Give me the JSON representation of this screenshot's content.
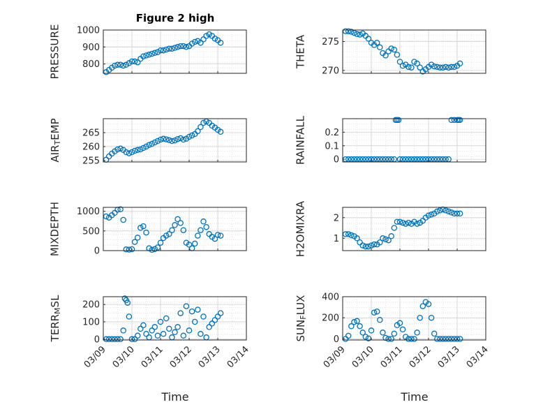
{
  "figure": {
    "title": "Figure 2 high",
    "xlabel": "Time"
  },
  "colors": {
    "marker": "#0072bd",
    "grid": "#dcdcdc",
    "axis": "#262626"
  },
  "chart_data": [
    {
      "type": "scatter",
      "ylabel": "PRESSURE",
      "ylim": [
        745,
        1000
      ],
      "yticks": [
        "800",
        "900",
        "1000"
      ],
      "ytick_values": [
        800,
        900,
        1000
      ],
      "xlim": [
        0,
        5
      ],
      "xticks": [],
      "grid": true,
      "x": [
        0.1,
        0.2,
        0.3,
        0.4,
        0.5,
        0.6,
        0.7,
        0.8,
        0.9,
        1.0,
        1.1,
        1.2,
        1.3,
        1.4,
        1.5,
        1.6,
        1.7,
        1.8,
        1.9,
        2.0,
        2.1,
        2.2,
        2.3,
        2.4,
        2.5,
        2.6,
        2.7,
        2.8,
        2.9,
        3.0,
        3.1,
        3.2,
        3.3,
        3.4,
        3.5,
        3.6,
        3.7,
        3.8,
        3.9,
        4.0,
        4.1
      ],
      "y": [
        752,
        765,
        778,
        790,
        795,
        795,
        790,
        795,
        805,
        815,
        815,
        810,
        830,
        845,
        850,
        855,
        860,
        865,
        870,
        880,
        880,
        885,
        890,
        890,
        895,
        900,
        905,
        905,
        900,
        905,
        920,
        930,
        935,
        925,
        945,
        965,
        975,
        965,
        950,
        940,
        925
      ]
    },
    {
      "type": "scatter",
      "ylabel": "THETA",
      "ylim": [
        269.5,
        277
      ],
      "yticks": [
        "270",
        "275"
      ],
      "ytick_values": [
        270,
        275
      ],
      "xlim": [
        0,
        5
      ],
      "xticks": [],
      "grid": true,
      "x": [
        0.1,
        0.2,
        0.3,
        0.4,
        0.5,
        0.6,
        0.7,
        0.8,
        0.9,
        1.0,
        1.1,
        1.2,
        1.3,
        1.4,
        1.5,
        1.6,
        1.7,
        1.8,
        1.9,
        2.0,
        2.1,
        2.2,
        2.3,
        2.4,
        2.5,
        2.6,
        2.7,
        2.8,
        2.9,
        3.0,
        3.1,
        3.2,
        3.3,
        3.4,
        3.5,
        3.6,
        3.7,
        3.8,
        3.9,
        4.0,
        4.1
      ],
      "y": [
        276.8,
        276.8,
        276.7,
        276.5,
        276.3,
        276.2,
        276.4,
        276.0,
        275.5,
        274.8,
        274.4,
        274.8,
        274.0,
        273.0,
        272.6,
        273.3,
        273.8,
        273.6,
        272.7,
        271.5,
        270.8,
        271.0,
        270.6,
        270.5,
        271.5,
        271.2,
        270.5,
        269.8,
        270.2,
        270.6,
        271.0,
        270.7,
        270.6,
        270.5,
        270.5,
        270.6,
        270.5,
        270.6,
        270.6,
        270.8,
        271.2
      ]
    },
    {
      "type": "scatter",
      "ylabel": "AIR_T EMP",
      "ylim": [
        254.5,
        270
      ],
      "yticks": [
        "255",
        "260",
        "265"
      ],
      "ytick_values": [
        255,
        260,
        265
      ],
      "xlim": [
        0,
        5
      ],
      "xticks": [],
      "grid": true,
      "x": [
        0.1,
        0.2,
        0.3,
        0.4,
        0.5,
        0.6,
        0.7,
        0.8,
        0.9,
        1.0,
        1.1,
        1.2,
        1.3,
        1.4,
        1.5,
        1.6,
        1.7,
        1.8,
        1.9,
        2.0,
        2.1,
        2.2,
        2.3,
        2.4,
        2.5,
        2.6,
        2.7,
        2.8,
        2.9,
        3.0,
        3.1,
        3.2,
        3.3,
        3.4,
        3.5,
        3.6,
        3.7,
        3.8,
        3.9,
        4.0,
        4.1
      ],
      "y": [
        255.3,
        256.5,
        257.5,
        258.3,
        259.0,
        259.3,
        258.8,
        258.0,
        257.6,
        258.0,
        258.5,
        258.8,
        259.0,
        259.5,
        260.0,
        260.6,
        261.0,
        261.5,
        262.0,
        262.5,
        262.8,
        262.6,
        262.3,
        262.0,
        262.2,
        262.7,
        263.0,
        262.5,
        262.8,
        263.5,
        264.0,
        264.5,
        265.5,
        267.0,
        268.5,
        269.0,
        268.5,
        267.5,
        266.8,
        266.0,
        265.3
      ]
    },
    {
      "type": "scatter",
      "ylabel": "RAINFALL",
      "ylim": [
        -0.02,
        0.3
      ],
      "yticks": [
        "0",
        "0.1",
        "0.2"
      ],
      "ytick_values": [
        0,
        0.1,
        0.2
      ],
      "xlim": [
        0,
        5
      ],
      "xticks": [],
      "grid": true,
      "x": [
        0.1,
        0.2,
        0.3,
        0.4,
        0.5,
        0.6,
        0.7,
        0.8,
        0.9,
        1.0,
        1.1,
        1.2,
        1.3,
        1.4,
        1.5,
        1.6,
        1.7,
        1.8,
        1.85,
        1.9,
        1.95,
        2.0,
        2.1,
        2.2,
        2.3,
        2.4,
        2.5,
        2.6,
        2.7,
        2.8,
        2.9,
        3.0,
        3.1,
        3.2,
        3.3,
        3.4,
        3.5,
        3.6,
        3.7,
        3.8,
        3.9,
        4.0,
        4.05,
        4.1
      ],
      "y": [
        0,
        0,
        0,
        0,
        0,
        0,
        0,
        0,
        0,
        0,
        0,
        0,
        0,
        0,
        0,
        0,
        0,
        0,
        0.29,
        0.29,
        0.29,
        0,
        0,
        0,
        0,
        0,
        0,
        0,
        0,
        0,
        0,
        0,
        0,
        0,
        0,
        0,
        0,
        0,
        0,
        0.29,
        0.29,
        0.29,
        0.29,
        0.29
      ]
    },
    {
      "type": "scatter",
      "ylabel": "MIXDEPTH",
      "ylim": [
        0,
        1100
      ],
      "yticks": [
        "0",
        "500",
        "1000"
      ],
      "ytick_values": [
        0,
        500,
        1000
      ],
      "xlim": [
        0,
        5
      ],
      "xticks": [],
      "grid": true,
      "x": [
        0.1,
        0.2,
        0.3,
        0.4,
        0.5,
        0.6,
        0.7,
        0.8,
        0.9,
        1.0,
        1.1,
        1.2,
        1.3,
        1.4,
        1.5,
        1.6,
        1.7,
        1.8,
        1.9,
        2.0,
        2.1,
        2.2,
        2.3,
        2.4,
        2.5,
        2.6,
        2.7,
        2.8,
        2.9,
        3.0,
        3.1,
        3.2,
        3.3,
        3.4,
        3.5,
        3.6,
        3.7,
        3.8,
        3.9,
        4.0,
        4.1
      ],
      "y": [
        870,
        840,
        900,
        960,
        1040,
        1050,
        780,
        30,
        25,
        35,
        220,
        330,
        580,
        620,
        460,
        60,
        20,
        40,
        80,
        200,
        320,
        380,
        420,
        520,
        650,
        800,
        700,
        520,
        200,
        150,
        60,
        180,
        380,
        520,
        740,
        600,
        420,
        350,
        300,
        400,
        380
      ]
    },
    {
      "type": "scatter",
      "ylabel": "H2OMIXRA",
      "ylim": [
        0.4,
        2.5
      ],
      "yticks": [
        "1",
        "2"
      ],
      "ytick_values": [
        1,
        2
      ],
      "xlim": [
        0,
        5
      ],
      "xticks": [],
      "grid": true,
      "x": [
        0.1,
        0.2,
        0.3,
        0.4,
        0.5,
        0.6,
        0.7,
        0.8,
        0.9,
        1.0,
        1.1,
        1.2,
        1.3,
        1.4,
        1.5,
        1.6,
        1.7,
        1.8,
        1.9,
        2.0,
        2.1,
        2.2,
        2.3,
        2.4,
        2.5,
        2.6,
        2.7,
        2.8,
        2.9,
        3.0,
        3.1,
        3.2,
        3.3,
        3.4,
        3.5,
        3.6,
        3.7,
        3.8,
        3.9,
        4.0,
        4.1
      ],
      "y": [
        1.2,
        1.2,
        1.15,
        1.1,
        1.0,
        0.8,
        0.65,
        0.6,
        0.6,
        0.65,
        0.7,
        0.7,
        0.8,
        1.0,
        0.95,
        0.9,
        1.1,
        1.5,
        1.8,
        1.8,
        1.75,
        1.7,
        1.75,
        1.7,
        1.8,
        1.7,
        1.75,
        1.85,
        2.0,
        2.1,
        2.15,
        2.2,
        2.3,
        2.35,
        2.4,
        2.35,
        2.3,
        2.25,
        2.2,
        2.2,
        2.2
      ]
    },
    {
      "type": "scatter",
      "ylabel": "TERR_M SL",
      "ylim": [
        -5,
        245
      ],
      "yticks": [
        "0",
        "100",
        "200"
      ],
      "ytick_values": [
        0,
        100,
        200
      ],
      "xlim": [
        0,
        5
      ],
      "xticks": [
        "03/09",
        "03/10",
        "03/11",
        "03/12",
        "03/13",
        "03/14"
      ],
      "xtick_values": [
        0,
        1,
        2,
        3,
        4,
        5
      ],
      "grid": true,
      "x": [
        0.1,
        0.2,
        0.3,
        0.4,
        0.5,
        0.6,
        0.7,
        0.75,
        0.8,
        0.85,
        0.9,
        1.0,
        1.1,
        1.2,
        1.3,
        1.4,
        1.5,
        1.6,
        1.7,
        1.8,
        1.9,
        2.0,
        2.1,
        2.2,
        2.3,
        2.4,
        2.5,
        2.6,
        2.7,
        2.8,
        2.9,
        3.0,
        3.1,
        3.2,
        3.3,
        3.4,
        3.5,
        3.6,
        3.7,
        3.8,
        3.9,
        4.0,
        4.1
      ],
      "y": [
        0,
        0,
        0,
        0,
        0,
        0,
        50,
        235,
        225,
        210,
        130,
        0,
        0,
        20,
        60,
        80,
        30,
        10,
        50,
        70,
        20,
        100,
        30,
        120,
        60,
        10,
        40,
        70,
        150,
        20,
        190,
        50,
        160,
        100,
        170,
        30,
        130,
        10,
        70,
        90,
        110,
        130,
        150
      ]
    },
    {
      "type": "scatter",
      "ylabel": "SUN_F LUX",
      "ylim": [
        -10,
        400
      ],
      "yticks": [
        "0",
        "200",
        "400"
      ],
      "ytick_values": [
        0,
        200,
        400
      ],
      "xlim": [
        0,
        5
      ],
      "xticks": [
        "03/09",
        "03/10",
        "03/11",
        "03/12",
        "03/13",
        "03/14"
      ],
      "xtick_values": [
        0,
        1,
        2,
        3,
        4,
        5
      ],
      "grid": true,
      "x": [
        0.1,
        0.2,
        0.3,
        0.4,
        0.5,
        0.6,
        0.7,
        0.8,
        0.9,
        1.0,
        1.1,
        1.2,
        1.3,
        1.4,
        1.5,
        1.6,
        1.7,
        1.8,
        1.9,
        2.0,
        2.1,
        2.2,
        2.3,
        2.4,
        2.5,
        2.6,
        2.7,
        2.8,
        2.9,
        3.0,
        3.1,
        3.2,
        3.3,
        3.4,
        3.5,
        3.6,
        3.7,
        3.8,
        3.9,
        4.0,
        4.1
      ],
      "y": [
        0,
        30,
        120,
        160,
        170,
        120,
        60,
        20,
        5,
        80,
        250,
        260,
        180,
        60,
        10,
        0,
        0,
        50,
        130,
        150,
        90,
        20,
        0,
        0,
        0,
        60,
        200,
        310,
        350,
        330,
        200,
        50,
        0,
        0,
        0,
        0,
        0,
        0,
        0,
        0,
        0
      ]
    }
  ]
}
